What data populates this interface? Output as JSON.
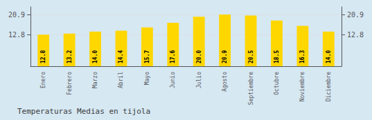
{
  "chart_data": {
    "type": "bar",
    "title": "Temperaturas Medias en tijola",
    "categories": [
      "Enero",
      "Febrero",
      "Marzo",
      "Abril",
      "Mayo",
      "Junio",
      "Julio",
      "Agosto",
      "Septiembre",
      "Octubre",
      "Noviembre",
      "Diciembre"
    ],
    "values": [
      12.8,
      13.2,
      14.0,
      14.4,
      15.7,
      17.6,
      20.0,
      20.9,
      20.5,
      18.5,
      16.3,
      14.0
    ],
    "value_labels": [
      "12.8",
      "13.2",
      "14.0",
      "14.4",
      "15.7",
      "17.6",
      "20.0",
      "20.9",
      "20.5",
      "18.5",
      "16.3",
      "14.0"
    ],
    "data_labels": true,
    "color": "#FFD700",
    "ylim": [
      0.0,
      24.0
    ],
    "yticks": [
      12.8,
      20.9
    ],
    "grid": true
  }
}
